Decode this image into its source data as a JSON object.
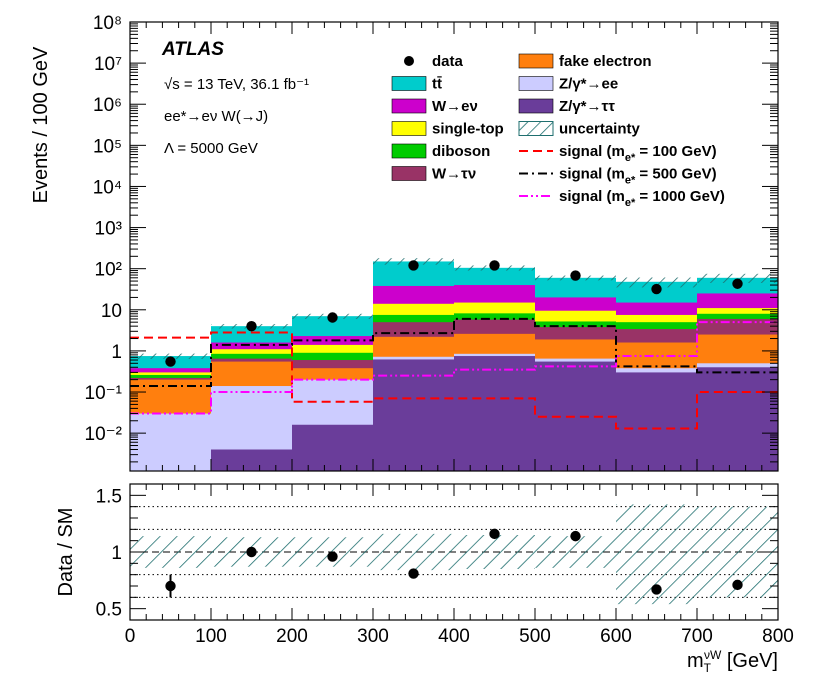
{
  "chart_data": [
    {
      "type": "stacked histogram",
      "experiment": "ATLAS",
      "info_lines": [
        "√s = 13 TeV, 36.1 fb⁻¹",
        "ee*→eν W(→J)",
        "Λ = 5000 GeV"
      ],
      "ylabel": "Events / 100 GeV",
      "yscale": "log",
      "ylim": [
        0.0012,
        100000000
      ],
      "ytick_labels": [
        "10⁻²",
        "10⁻¹",
        "1",
        "10",
        "10²",
        "10³",
        "10⁴",
        "10⁵",
        "10⁶",
        "10⁷",
        "10⁸"
      ],
      "ytick_values": [
        0.01,
        0.1,
        1,
        10,
        100,
        1000,
        10000,
        100000,
        1000000,
        10000000,
        100000000
      ],
      "bin_edges": [
        0,
        100,
        200,
        300,
        400,
        500,
        600,
        700,
        800
      ],
      "stack_order_bottom_to_top": [
        "Z/γ*→ττ",
        "Z/γ*→ee",
        "fake electron",
        "W→τν",
        "diboson",
        "single-top",
        "W→eν",
        "tt̄"
      ],
      "cumulative_stack": [
        {
          "name": "Z/γ*→ττ",
          "color": "#6a3d9a",
          "values": [
            0.0001,
            0.004,
            0.016,
            0.62,
            0.75,
            0.55,
            0.3,
            0.4
          ]
        },
        {
          "name": "Z/γ*→ee",
          "color": "#ccccff",
          "values": [
            0.03,
            0.14,
            0.2,
            0.72,
            0.85,
            0.65,
            0.38,
            0.5
          ]
        },
        {
          "name": "fake electron",
          "color": "#ff7f0e",
          "values": [
            0.2,
            0.55,
            0.38,
            2.2,
            2.6,
            1.9,
            1.6,
            2.5
          ]
        },
        {
          "name": "W→τν",
          "color": "#993366",
          "values": [
            0.22,
            0.65,
            0.6,
            5.0,
            5.8,
            3.8,
            3.4,
            6.0
          ]
        },
        {
          "name": "diboson",
          "color": "#00cc00",
          "values": [
            0.26,
            0.85,
            0.9,
            7.5,
            8.2,
            5.2,
            5.0,
            8.0
          ]
        },
        {
          "name": "single-top",
          "color": "#ffff00",
          "values": [
            0.3,
            1.1,
            1.4,
            14.0,
            15.0,
            9.5,
            7.5,
            11.0
          ]
        },
        {
          "name": "W→eν",
          "color": "#cc00cc",
          "values": [
            0.38,
            1.6,
            2.3,
            38.0,
            40.0,
            20.0,
            15.0,
            25.0
          ]
        },
        {
          "name": "tt̄",
          "color": "#00cccc",
          "values": [
            0.75,
            4.0,
            7.0,
            150.0,
            105.0,
            60.0,
            48.0,
            60.0
          ]
        }
      ],
      "uncertainty_band": {
        "name": "uncertainty",
        "low": [
          0.64,
          3.5,
          6.0,
          125.0,
          90.0,
          52.0,
          35.0,
          45.0
        ],
        "high": [
          0.86,
          4.5,
          8.0,
          180.0,
          120.0,
          68.0,
          61.0,
          75.0
        ]
      },
      "data": {
        "name": "data",
        "x": [
          50,
          150,
          250,
          350,
          450,
          550,
          650,
          750
        ],
        "y": [
          0.55,
          4.0,
          6.5,
          120.0,
          120.0,
          68.0,
          32.0,
          43.0
        ]
      },
      "signals": [
        {
          "name": "signal (m_e* = 100 GeV)",
          "color": "#ff0000",
          "style": "dashed",
          "values": [
            2.1,
            2.8,
            0.058,
            0.07,
            0.07,
            0.025,
            0.013,
            0.1
          ]
        },
        {
          "name": "signal (m_e* = 500 GeV)",
          "color": "#000000",
          "style": "dash-dot",
          "values": [
            0.14,
            1.4,
            1.8,
            2.7,
            6.0,
            4.0,
            0.42,
            0.3
          ]
        },
        {
          "name": "signal (m_e* = 1000 GeV)",
          "color": "#ff00ff",
          "style": "dash-dot-dot",
          "values": [
            0.03,
            0.1,
            0.2,
            0.25,
            0.35,
            0.42,
            0.75,
            5.0
          ]
        }
      ],
      "legend": [
        {
          "label": "data",
          "kind": "marker"
        },
        {
          "label": "tt̄",
          "kind": "fill",
          "color": "#00cccc"
        },
        {
          "label": "W→eν",
          "kind": "fill",
          "color": "#cc00cc"
        },
        {
          "label": "single-top",
          "kind": "fill",
          "color": "#ffff00"
        },
        {
          "label": "diboson",
          "kind": "fill",
          "color": "#00cc00"
        },
        {
          "label": "W→τν",
          "kind": "fill",
          "color": "#993366"
        },
        {
          "label": "fake electron",
          "kind": "fill",
          "color": "#ff7f0e"
        },
        {
          "label": "Z/γ*→ee",
          "kind": "fill",
          "color": "#ccccff"
        },
        {
          "label": "Z/γ*→ττ",
          "kind": "fill",
          "color": "#6a3d9a"
        },
        {
          "label": "uncertainty",
          "kind": "hatch",
          "color": "#1f6f6f"
        },
        {
          "label": "signal (m",
          "sub": "e*",
          "suffix": " = 100 GeV)",
          "kind": "line",
          "color": "#ff0000",
          "style": "dashed"
        },
        {
          "label": "signal (m",
          "sub": "e*",
          "suffix": " = 500 GeV)",
          "kind": "line",
          "color": "#000000",
          "style": "dash-dot"
        },
        {
          "label": "signal (m",
          "sub": "e*",
          "suffix": " = 1000 GeV)",
          "kind": "line",
          "color": "#ff00ff",
          "style": "dash-dot-dot"
        }
      ]
    },
    {
      "type": "ratio",
      "ylabel": "Data / SM",
      "ylim": [
        0.4,
        1.6
      ],
      "ytick_labels": [
        "0.5",
        "1",
        "1.5"
      ],
      "ytick_values": [
        0.5,
        1.0,
        1.5
      ],
      "reference_lines": [
        0.6,
        0.8,
        1.0,
        1.2,
        1.4
      ],
      "xlim": [
        0,
        800
      ],
      "xtick_labels": [
        "0",
        "100",
        "200",
        "300",
        "400",
        "500",
        "600",
        "700",
        "800"
      ],
      "xtick_values": [
        0,
        100,
        200,
        300,
        400,
        500,
        600,
        700,
        800
      ],
      "xlabel": "m",
      "xlabel_sub": "T",
      "xlabel_sup": "νW",
      "xlabel_unit": " [GeV]",
      "uncertainty_low": [
        0.86,
        0.87,
        0.87,
        0.84,
        0.85,
        0.86,
        0.54,
        0.6
      ],
      "uncertainty_high": [
        1.14,
        1.13,
        1.13,
        1.16,
        1.15,
        1.14,
        1.42,
        1.4
      ],
      "points": {
        "x": [
          50,
          150,
          250,
          350,
          450,
          550,
          650,
          750
        ],
        "y": [
          0.7,
          1.0,
          0.96,
          0.81,
          1.16,
          1.14,
          0.67,
          0.71
        ],
        "err": [
          0.1,
          0.03,
          0.02,
          0.02,
          0.02,
          0.02,
          0.02,
          0.02
        ]
      }
    }
  ]
}
